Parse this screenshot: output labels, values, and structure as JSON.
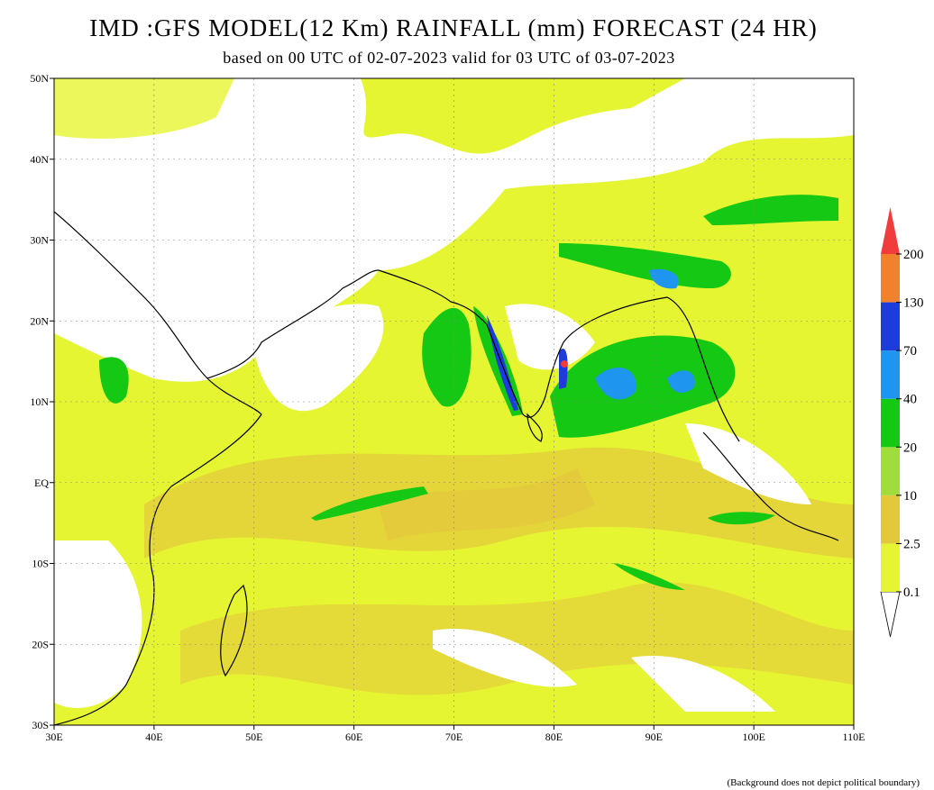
{
  "header": {
    "title": "IMD :GFS MODEL(12 Km) RAINFALL (mm) FORECAST (24 HR)",
    "subtitle": "based on 00 UTC of 02-07-2023 valid for 03 UTC of 03-07-2023"
  },
  "map": {
    "lon_labels": [
      "30E",
      "40E",
      "50E",
      "60E",
      "70E",
      "80E",
      "90E",
      "100E",
      "110E"
    ],
    "lat_labels": [
      "50N",
      "40N",
      "30N",
      "20N",
      "10N",
      "EQ",
      "10S",
      "20S",
      "30S"
    ]
  },
  "legend": {
    "levels": [
      {
        "label": "0.1",
        "color": "#e6f532"
      },
      {
        "label": "2.5",
        "color": "#e3c83c"
      },
      {
        "label": "10",
        "color": "#a0dc3c"
      },
      {
        "label": "20",
        "color": "#14c814"
      },
      {
        "label": "40",
        "color": "#1e96f0"
      },
      {
        "label": "70",
        "color": "#1e3cdc"
      },
      {
        "label": "130",
        "color": "#f0822d"
      },
      {
        "label": "200",
        "color": "#f03c3c"
      }
    ]
  },
  "footnote": "(Background does not depict political boundary)"
}
